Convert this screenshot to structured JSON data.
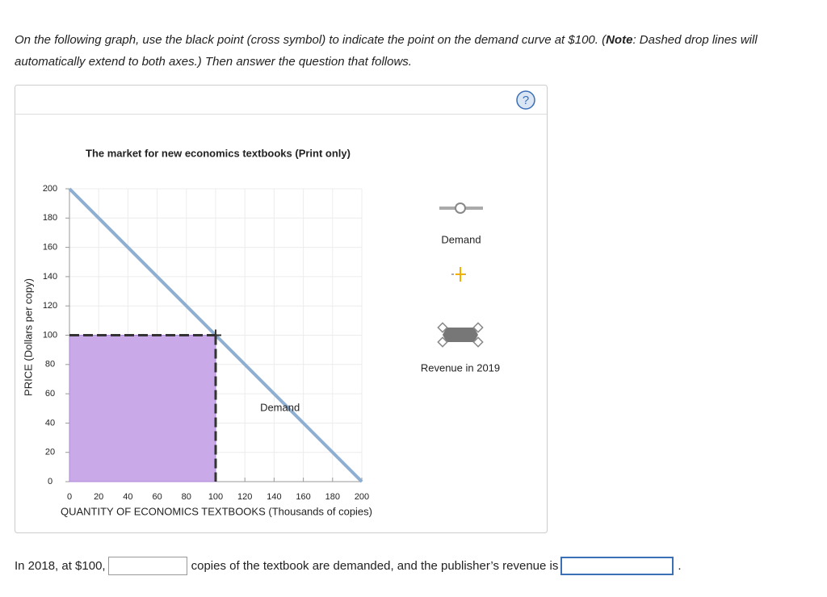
{
  "instructions": [
    "On the following graph, use the black point (cross symbol) to indicate the point on the demand curve at $100. (",
    "Note",
    ": Dashed drop lines will automatically extend to both axes.) Then answer the question that follows."
  ],
  "chart_data": {
    "type": "line",
    "title": "The market for new economics textbooks (Print only)",
    "x_label": "QUANTITY OF ECONOMICS TEXTBOOKS (Thousands of copies)",
    "y_label": "PRICE (Dollars per copy)",
    "xlim": [
      0,
      200
    ],
    "ylim": [
      0,
      200
    ],
    "xticks": [
      0,
      20,
      40,
      60,
      80,
      100,
      120,
      140,
      160,
      180,
      200
    ],
    "yticks": [
      0,
      20,
      40,
      60,
      80,
      100,
      120,
      140,
      160,
      180,
      200
    ],
    "grid": true,
    "series": [
      {
        "name": "Demand",
        "color": "#8eaed2",
        "x": [
          0,
          200
        ],
        "values": [
          200,
          0
        ]
      }
    ],
    "point": {
      "x": 100,
      "y": 100,
      "color": "#333333"
    },
    "area": {
      "name": "Revenue in 2019",
      "color": "#c9a9e8",
      "x": [
        0,
        100
      ],
      "values": [
        100,
        100
      ]
    }
  },
  "question": [
    "In 2018, at $100,",
    "copies of the textbook are demanded, and the publisher’s revenue is",
    "."
  ]
}
